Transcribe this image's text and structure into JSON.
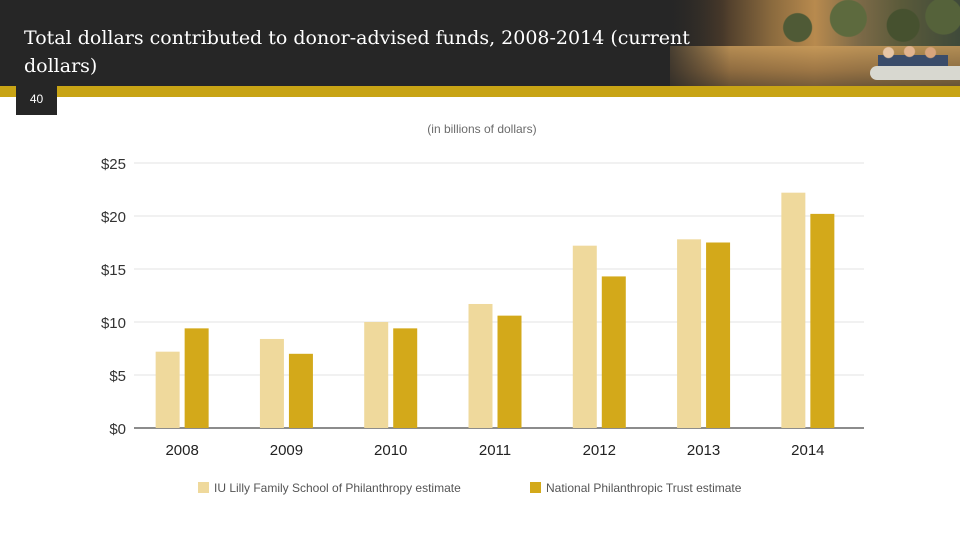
{
  "header": {
    "title": "Total dollars contributed to donor-advised funds, 2008-2014 (current dollars)",
    "page_number": "40",
    "accent_color": "#c8a415"
  },
  "chart_data": {
    "type": "bar",
    "subtitle": "(in billions of dollars)",
    "categories": [
      "2008",
      "2009",
      "2010",
      "2011",
      "2012",
      "2013",
      "2014"
    ],
    "series": [
      {
        "name": "IU Lilly Family School of Philanthropy estimate",
        "color": "#efd99c",
        "values": [
          7.2,
          8.4,
          10.0,
          11.7,
          17.2,
          17.8,
          22.2
        ]
      },
      {
        "name": "National Philanthropic Trust estimate",
        "color": "#d3a91a",
        "values": [
          9.4,
          7.0,
          9.4,
          10.6,
          14.3,
          17.5,
          20.2
        ]
      }
    ],
    "ylim": [
      0,
      25
    ],
    "yticks": [
      0,
      5,
      10,
      15,
      20,
      25
    ],
    "ytick_labels": [
      "$0",
      "$5",
      "$10",
      "$15",
      "$20",
      "$25"
    ],
    "grid": true,
    "legend_position": "bottom"
  }
}
